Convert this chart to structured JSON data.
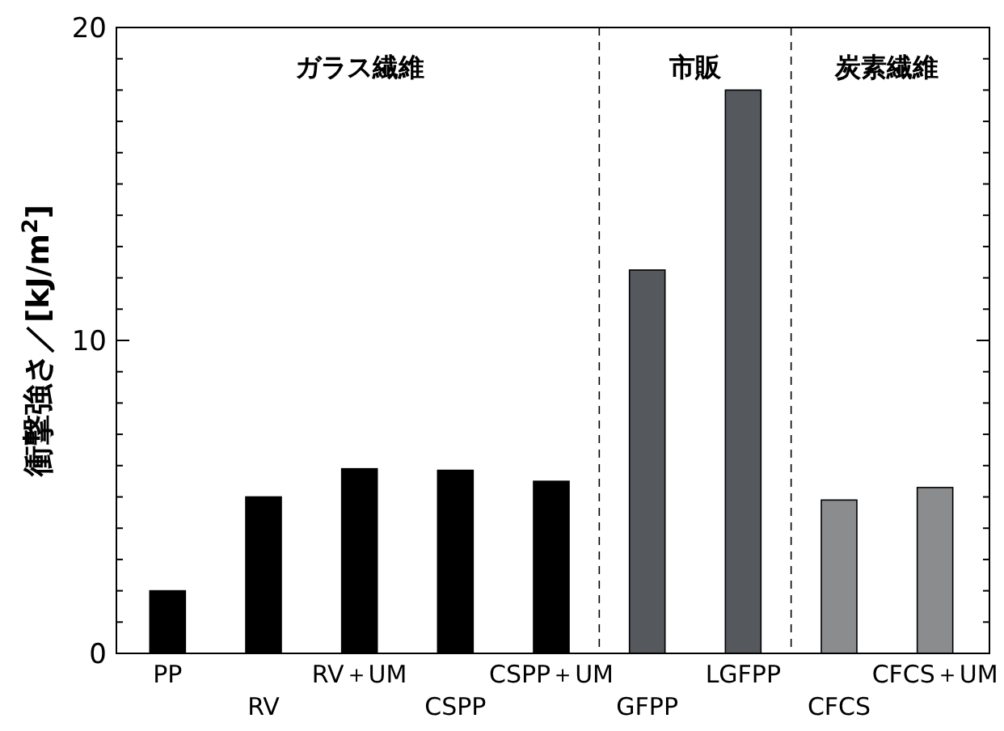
{
  "chart_data": {
    "type": "bar",
    "ylabel": "衝撃強さ／[kJ/m$^{2}$]",
    "categories": [
      "PP",
      "RV",
      "RV＋UM",
      "CSPP",
      "CSPP＋UM",
      "GFPP",
      "LGFPP",
      "CFCS",
      "CFCS＋UM"
    ],
    "values": [
      2.0,
      5.0,
      5.9,
      5.85,
      5.5,
      12.25,
      18.0,
      4.9,
      5.3
    ],
    "colors": [
      "#000000",
      "#000000",
      "#000000",
      "#000000",
      "#000000",
      "#55585c",
      "#55585c",
      "#8a8c8e",
      "#8a8c8e"
    ],
    "ylim": [
      0,
      20
    ],
    "yticks": [
      0,
      {
        "value": 1,
        "label": null
      },
      {
        "value": 2,
        "label": null
      },
      {
        "value": 3,
        "label": null
      },
      {
        "value": 4,
        "label": null
      },
      {
        "value": 5,
        "label": null
      },
      {
        "value": 6,
        "label": null
      },
      {
        "value": 7,
        "label": null
      },
      {
        "value": 8,
        "label": null
      },
      {
        "value": 9,
        "label": null
      },
      10,
      {
        "value": 11,
        "label": null
      },
      {
        "value": 12,
        "label": null
      },
      {
        "value": 13,
        "label": null
      },
      {
        "value": 14,
        "label": null
      },
      {
        "value": 15,
        "label": null
      },
      {
        "value": 16,
        "label": null
      },
      {
        "value": 17,
        "label": null
      },
      {
        "value": 18,
        "label": null
      },
      {
        "value": 19,
        "label": null
      },
      20
    ],
    "annotations": [
      "ガラス繊維",
      "市販",
      "炭素繊維"
    ],
    "grid": false
  }
}
